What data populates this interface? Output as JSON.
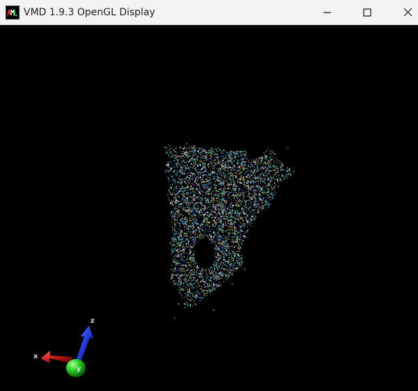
{
  "window": {
    "title": "VMD 1.9.3 OpenGL Display"
  },
  "axes": {
    "x_label": "x",
    "y_label": "y",
    "z_label": "z",
    "x_color": "#cc1f1f",
    "y_color": "#19c219",
    "z_color": "#1c39d9"
  },
  "molecule": {
    "representation": "points",
    "colors": [
      "#7fd6d1",
      "#5cc3c8",
      "#2f9fb8",
      "#3d5fd8",
      "#d98aa0",
      "#ffffff",
      "#6ec36f",
      "#d9b347"
    ]
  }
}
